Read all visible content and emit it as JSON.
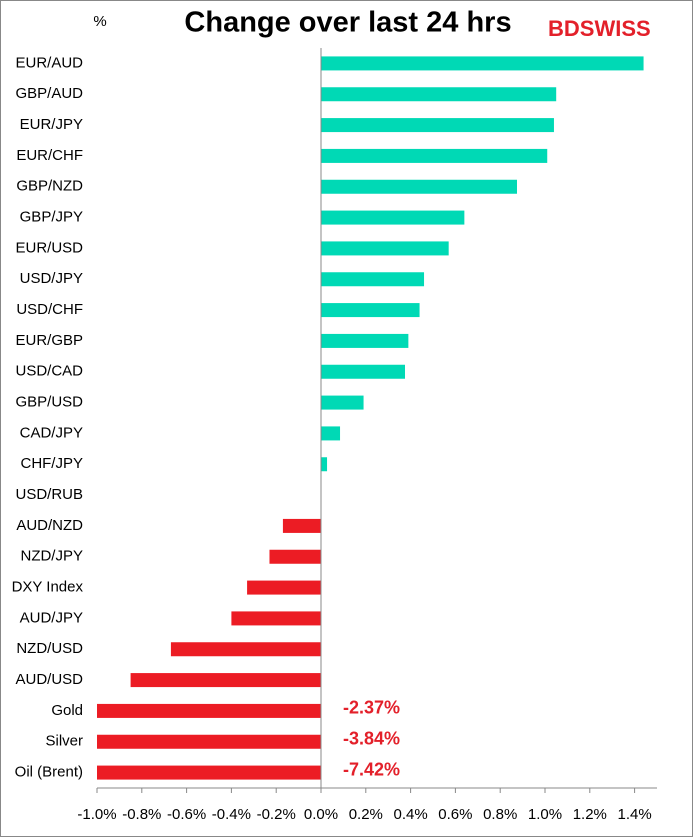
{
  "chart_data": {
    "type": "hbar",
    "title": "Change over last 24 hrs",
    "unit_label": "%",
    "logo": "BDSWISS",
    "categories": [
      "EUR/AUD",
      "GBP/AUD",
      "EUR/JPY",
      "EUR/CHF",
      "GBP/NZD",
      "GBP/JPY",
      "EUR/USD",
      "USD/JPY",
      "USD/CHF",
      "EUR/GBP",
      "USD/CAD",
      "GBP/USD",
      "CAD/JPY",
      "CHF/JPY",
      "USD/RUB",
      "AUD/NZD",
      "NZD/JPY",
      "DXY Index",
      "AUD/JPY",
      "NZD/USD",
      "AUD/USD",
      "Gold",
      "Silver",
      "Oil (Brent)"
    ],
    "values": [
      1.44,
      1.05,
      1.04,
      1.01,
      0.875,
      0.64,
      0.57,
      0.46,
      0.44,
      0.39,
      0.375,
      0.19,
      0.085,
      0.027,
      0,
      -0.17,
      -0.23,
      -0.33,
      -0.4,
      -0.67,
      -0.85,
      -2.37,
      -3.84,
      -7.42
    ],
    "value_labels": [
      null,
      null,
      null,
      null,
      null,
      null,
      null,
      null,
      null,
      null,
      null,
      null,
      null,
      null,
      null,
      null,
      null,
      null,
      null,
      null,
      null,
      "-2.37%",
      "-3.84%",
      "-7.42%"
    ],
    "positive_color": "#00d9b5",
    "negative_color": "#ec1c24",
    "xlim": [
      -1.0,
      1.5
    ],
    "xticks": [
      {
        "value": -1.0,
        "label": "-1.0%"
      },
      {
        "value": -0.8,
        "label": "-0.8%"
      },
      {
        "value": -0.6,
        "label": "-0.6%"
      },
      {
        "value": -0.4,
        "label": "-0.4%"
      },
      {
        "value": -0.2,
        "label": "-0.2%"
      },
      {
        "value": 0,
        "label": "0.0%"
      },
      {
        "value": 0.2,
        "label": "0.2%"
      },
      {
        "value": 0.4,
        "label": "0.4%"
      },
      {
        "value": 0.6,
        "label": "0.6%"
      },
      {
        "value": 0.8,
        "label": "0.8%"
      },
      {
        "value": 1.0,
        "label": "1.0%"
      },
      {
        "value": 1.2,
        "label": "1.2%"
      },
      {
        "value": 1.4,
        "label": "1.4%"
      }
    ],
    "grid": false
  }
}
